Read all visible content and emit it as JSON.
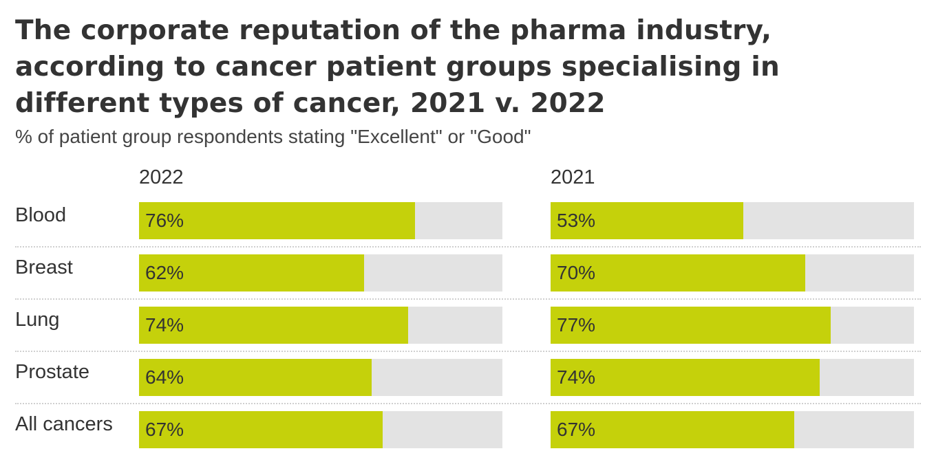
{
  "chart_data": {
    "type": "bar",
    "title": "The corporate reputation of the pharma industry, according to cancer patient groups specialising in different types of cancer, 2021 v. 2022",
    "subtitle": "% of patient group respondents stating \"Excellent\" or \"Good\"",
    "categories": [
      "Blood",
      "Breast",
      "Lung",
      "Prostate",
      "All cancers"
    ],
    "xlim": [
      0,
      100
    ],
    "bar_color": "#c5d10b",
    "track_color": "#e3e3e3",
    "series": [
      {
        "name": "2022",
        "values": [
          76,
          62,
          74,
          64,
          67
        ],
        "labels": [
          "76%",
          "62%",
          "74%",
          "64%",
          "67%"
        ]
      },
      {
        "name": "2021",
        "values": [
          53,
          70,
          77,
          74,
          67
        ],
        "labels": [
          "53%",
          "70%",
          "77%",
          "74%",
          "67%"
        ]
      }
    ]
  }
}
